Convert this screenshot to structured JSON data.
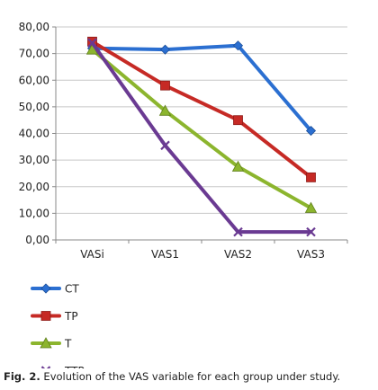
{
  "chart_data": {
    "type": "line",
    "categories": [
      "VASi",
      "VAS1",
      "VAS2",
      "VAS3"
    ],
    "ylim": [
      0,
      80
    ],
    "yticks": [
      "0,00",
      "10,00",
      "20,00",
      "30,00",
      "40,00",
      "50,00",
      "60,00",
      "70,00",
      "80,00"
    ],
    "grid": true,
    "legend_position": "bottom-left",
    "series": [
      {
        "name": "CT",
        "values": [
          72.0,
          71.5,
          73.0,
          41.0
        ],
        "color": "#2b6fd1",
        "marker": "diamond"
      },
      {
        "name": "TP",
        "values": [
          74.5,
          58.0,
          45.0,
          23.5
        ],
        "color": "#c62a25",
        "marker": "square"
      },
      {
        "name": "T",
        "values": [
          71.5,
          48.5,
          27.5,
          12.0
        ],
        "color": "#8cb52e",
        "marker": "triangle"
      },
      {
        "name": "TTP",
        "values": [
          74.0,
          35.5,
          3.0,
          3.0
        ],
        "color": "#6a3a92",
        "marker": "cross"
      }
    ]
  },
  "caption": {
    "label": "Fig. 2.",
    "text": " Evolution of the VAS variable for each group under study."
  }
}
